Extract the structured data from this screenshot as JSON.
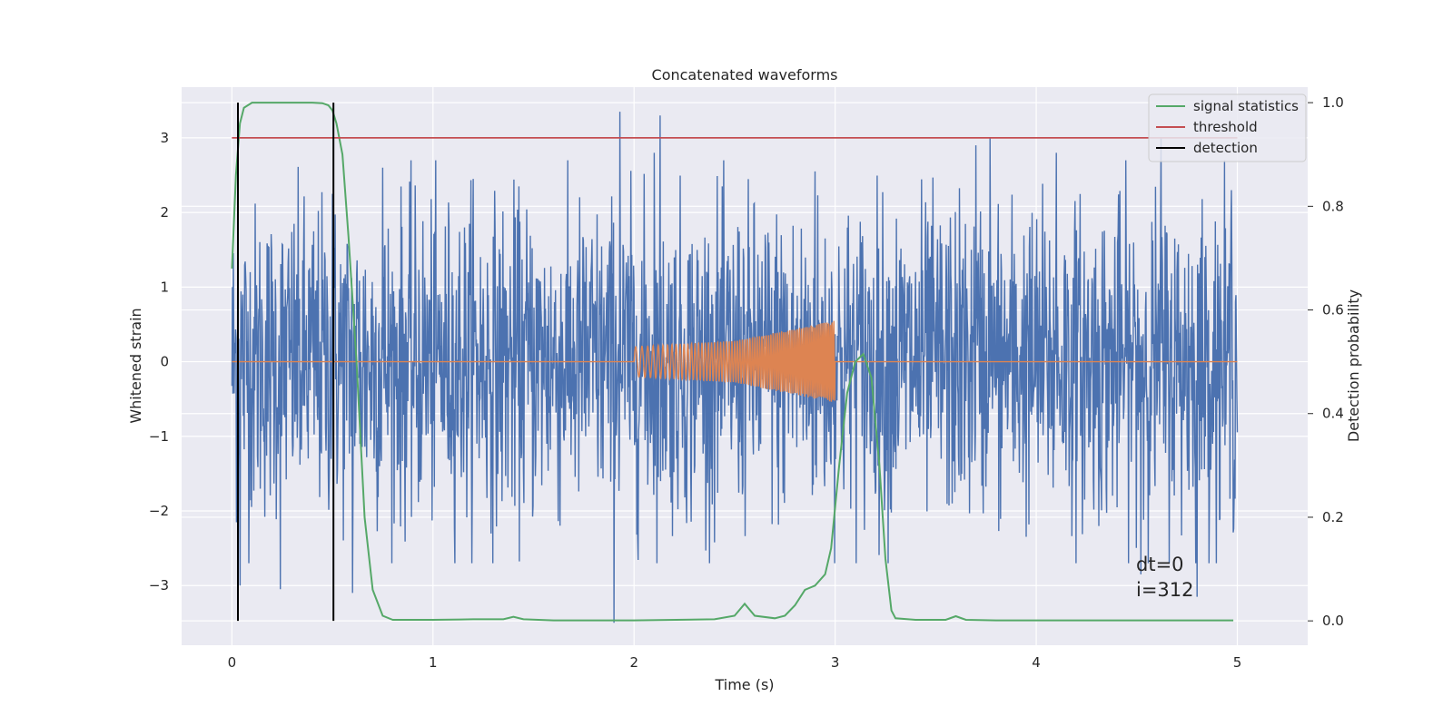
{
  "chart_data": {
    "type": "line",
    "title": "Concatenated waveforms",
    "xlabel": "Time (s)",
    "ylabel": "Whitened strain",
    "y2label": "Detection probability",
    "xlim": [
      -0.25,
      5.35
    ],
    "ylim": [
      -3.8,
      3.68
    ],
    "y2lim": [
      -0.047,
      1.03
    ],
    "x_ticks": [
      0,
      1,
      2,
      3,
      4,
      5
    ],
    "y_ticks": [
      -3,
      -2,
      -1,
      0,
      1,
      2,
      3
    ],
    "y2_ticks": [
      0.0,
      0.2,
      0.4,
      0.6,
      0.8,
      1.0
    ],
    "y2_tick_labels": [
      "0.0",
      "0.2",
      "0.4",
      "0.6",
      "0.8",
      "1.0"
    ],
    "grid": true,
    "legend_position": "top-right",
    "series": [
      {
        "name": "",
        "axis": "left",
        "color": "#4c72b0",
        "kind": "noise",
        "x_range": [
          0,
          5
        ],
        "amplitude_typical": 1.1,
        "peaks": [
          {
            "x": 0.03,
            "y": 2.4
          },
          {
            "x": 0.04,
            "y": -3.0
          },
          {
            "x": 0.24,
            "y": -3.05
          },
          {
            "x": 0.5,
            "y": 2.25
          },
          {
            "x": 0.6,
            "y": -3.1
          },
          {
            "x": 0.75,
            "y": 2.6
          },
          {
            "x": 1.2,
            "y": 2.45
          },
          {
            "x": 1.9,
            "y": -3.5
          },
          {
            "x": 1.93,
            "y": 3.35
          },
          {
            "x": 2.13,
            "y": 3.3
          },
          {
            "x": 2.1,
            "y": 2.8
          },
          {
            "x": 2.9,
            "y": 2.55
          },
          {
            "x": 3.7,
            "y": 2.9
          },
          {
            "x": 3.77,
            "y": 3.0
          },
          {
            "x": 4.1,
            "y": 2.8
          },
          {
            "x": 4.52,
            "y": -2.85
          },
          {
            "x": 4.62,
            "y": 3.0
          },
          {
            "x": 4.8,
            "y": -3.15
          },
          {
            "x": 4.97,
            "y": 2.3
          }
        ]
      },
      {
        "name": "",
        "axis": "left",
        "color": "#dd8452",
        "kind": "chirp",
        "x": [
          0,
          2,
          2.5,
          3,
          3.01,
          5
        ],
        "envelope": [
          0,
          0.2,
          0.28,
          0.55,
          0,
          0
        ],
        "chirp_start": 2,
        "chirp_end": 3
      },
      {
        "name": "signal statistics",
        "axis": "right",
        "color": "#55a868",
        "x": [
          0.0,
          0.02,
          0.04,
          0.06,
          0.1,
          0.2,
          0.3,
          0.4,
          0.45,
          0.48,
          0.5,
          0.52,
          0.55,
          0.58,
          0.62,
          0.66,
          0.7,
          0.75,
          0.8,
          1.0,
          1.2,
          1.35,
          1.4,
          1.45,
          1.6,
          2.0,
          2.4,
          2.5,
          2.55,
          2.6,
          2.7,
          2.75,
          2.8,
          2.85,
          2.9,
          2.95,
          2.98,
          3.02,
          3.06,
          3.1,
          3.14,
          3.18,
          3.22,
          3.25,
          3.28,
          3.3,
          3.4,
          3.55,
          3.6,
          3.65,
          3.8,
          4.5,
          4.98
        ],
        "y": [
          0.68,
          0.86,
          0.96,
          0.99,
          1.0,
          1.0,
          1.0,
          1.0,
          0.999,
          0.995,
          0.985,
          0.96,
          0.9,
          0.74,
          0.5,
          0.2,
          0.06,
          0.01,
          0.002,
          0.002,
          0.003,
          0.003,
          0.008,
          0.003,
          0.001,
          0.001,
          0.003,
          0.01,
          0.033,
          0.01,
          0.005,
          0.01,
          0.03,
          0.06,
          0.068,
          0.09,
          0.14,
          0.3,
          0.44,
          0.5,
          0.515,
          0.47,
          0.3,
          0.12,
          0.02,
          0.005,
          0.002,
          0.002,
          0.009,
          0.002,
          0.001,
          0.001,
          0.001
        ]
      },
      {
        "name": "threshold",
        "axis": "left",
        "color": "#c44e52",
        "x": [
          0,
          5
        ],
        "y": [
          3.0,
          3.0
        ]
      },
      {
        "name": "detection",
        "axis": "right",
        "color": "#000000",
        "kind": "vlines",
        "x": [
          0.03,
          0.505
        ],
        "y": [
          0.0,
          1.0
        ]
      }
    ],
    "annotations": [
      "dt=0",
      "i=312"
    ]
  }
}
